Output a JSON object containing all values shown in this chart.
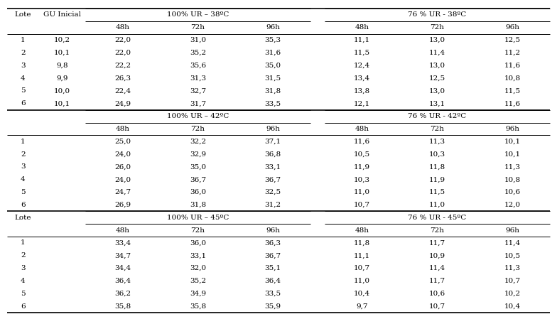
{
  "sections": [
    {
      "temp": "38",
      "header_100": "100% UR – 38ºC",
      "header_76": "76 % UR - 38ºC",
      "show_lote_header": true,
      "show_gu_header": true,
      "lotes": [
        "1",
        "2",
        "3",
        "4",
        "5",
        "6"
      ],
      "gu_inicial": [
        "10,2",
        "10,1",
        "9,8",
        "9,9",
        "10,0",
        "10,1"
      ],
      "data_100": [
        [
          "22,0",
          "31,0",
          "35,3"
        ],
        [
          "22,0",
          "35,2",
          "31,6"
        ],
        [
          "22,2",
          "35,6",
          "35,0"
        ],
        [
          "26,3",
          "31,3",
          "31,5"
        ],
        [
          "22,4",
          "32,7",
          "31,8"
        ],
        [
          "24,9",
          "31,7",
          "33,5"
        ]
      ],
      "data_76": [
        [
          "11,1",
          "13,0",
          "12,5"
        ],
        [
          "11,5",
          "11,4",
          "11,2"
        ],
        [
          "12,4",
          "13,0",
          "11,6"
        ],
        [
          "13,4",
          "12,5",
          "10,8"
        ],
        [
          "13,8",
          "13,0",
          "11,5"
        ],
        [
          "12,1",
          "13,1",
          "11,6"
        ]
      ]
    },
    {
      "temp": "42",
      "header_100": "100% UR – 42ºC",
      "header_76": "76 % UR - 42ºC",
      "show_lote_header": false,
      "show_gu_header": false,
      "lotes": [
        "1",
        "2",
        "3",
        "4",
        "5",
        "6"
      ],
      "gu_inicial": [
        "",
        "",
        "",
        "",
        "",
        ""
      ],
      "data_100": [
        [
          "25,0",
          "32,2",
          "37,1"
        ],
        [
          "24,0",
          "32,9",
          "36,8"
        ],
        [
          "26,0",
          "35,0",
          "33,1"
        ],
        [
          "24,0",
          "36,7",
          "36,7"
        ],
        [
          "24,7",
          "36,0",
          "32,5"
        ],
        [
          "26,9",
          "31,8",
          "31,2"
        ]
      ],
      "data_76": [
        [
          "11,6",
          "11,3",
          "10,1"
        ],
        [
          "10,5",
          "10,3",
          "10,1"
        ],
        [
          "11,9",
          "11,8",
          "11,3"
        ],
        [
          "10,3",
          "11,9",
          "10,8"
        ],
        [
          "11,0",
          "11,5",
          "10,6"
        ],
        [
          "10,7",
          "11,0",
          "12,0"
        ]
      ]
    },
    {
      "temp": "45",
      "header_100": "100% UR – 45ºC",
      "header_76": "76 % UR - 45ºC",
      "show_lote_header": true,
      "show_gu_header": false,
      "lotes": [
        "1",
        "2",
        "3",
        "4",
        "5",
        "6"
      ],
      "gu_inicial": [
        "",
        "",
        "",
        "",
        "",
        ""
      ],
      "data_100": [
        [
          "33,4",
          "36,0",
          "36,3"
        ],
        [
          "34,7",
          "33,1",
          "36,7"
        ],
        [
          "34,4",
          "32,0",
          "35,1"
        ],
        [
          "36,4",
          "35,2",
          "36,4"
        ],
        [
          "36,2",
          "34,9",
          "33,5"
        ],
        [
          "35,8",
          "35,8",
          "35,9"
        ]
      ],
      "data_76": [
        [
          "11,8",
          "11,7",
          "11,4"
        ],
        [
          "11,1",
          "10,9",
          "10,5"
        ],
        [
          "10,7",
          "11,4",
          "11,3"
        ],
        [
          "11,0",
          "11,7",
          "10,7"
        ],
        [
          "10,4",
          "10,6",
          "10,2"
        ],
        [
          "9,7",
          "10,7",
          "10,4"
        ]
      ]
    }
  ],
  "col_headers": [
    "48h",
    "72h",
    "96h"
  ],
  "font_size": 7.5,
  "bg_color": "white",
  "line_color": "black",
  "lote_label": "Lote",
  "gu_label": "GU Inicial"
}
